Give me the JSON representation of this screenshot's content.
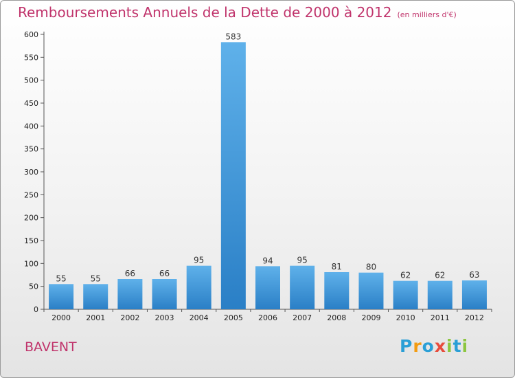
{
  "header": {
    "title": "Remboursements Annuels de la Dette de 2000 à 2012",
    "unit_note": "(en milliers d'€)"
  },
  "commune": "BAVENT",
  "logo": {
    "letters": [
      "P",
      "r",
      "o",
      "x",
      "i",
      "t",
      "i"
    ],
    "colors": [
      "#2a9fd6",
      "#f39c12",
      "#2a9fd6",
      "#e74c3c",
      "#8cc63f",
      "#2a9fd6",
      "#8cc63f"
    ]
  },
  "chart_data": {
    "type": "bar",
    "title": "Remboursements Annuels de la Dette de 2000 à 2012",
    "categories": [
      "2000",
      "2001",
      "2002",
      "2003",
      "2004",
      "2005",
      "2006",
      "2007",
      "2008",
      "2009",
      "2010",
      "2011",
      "2012"
    ],
    "values": [
      55,
      55,
      66,
      66,
      95,
      583,
      94,
      95,
      81,
      80,
      62,
      62,
      63
    ],
    "ylim": [
      0,
      600
    ],
    "yticks": [
      0,
      50,
      100,
      150,
      200,
      250,
      300,
      350,
      400,
      450,
      500,
      550,
      600
    ],
    "grid": false,
    "bar_color": "#3d93d9"
  }
}
